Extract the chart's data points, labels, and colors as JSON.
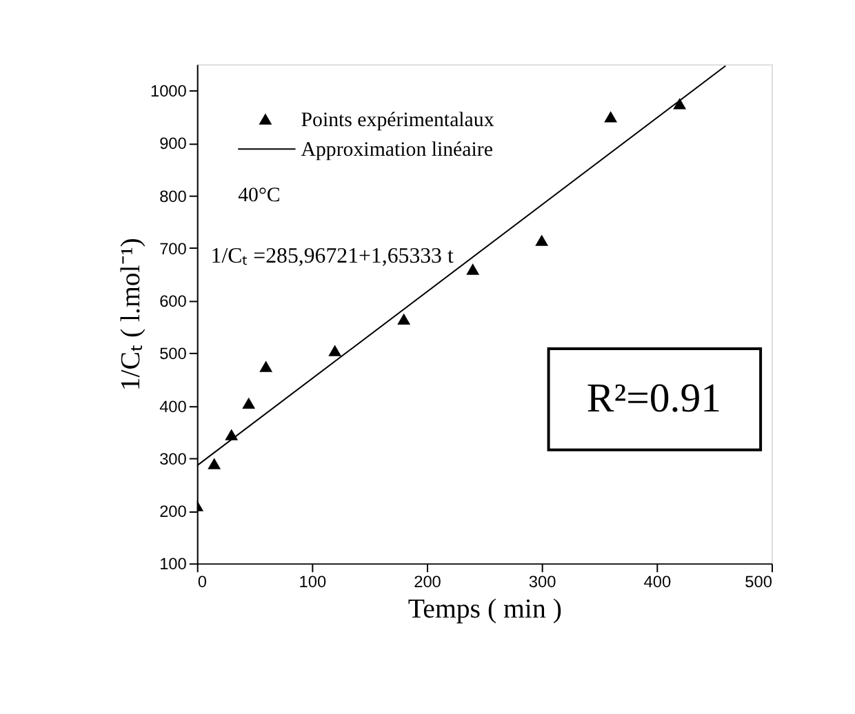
{
  "chart_data": {
    "type": "scatter",
    "xlabel": "Temps ( min )",
    "ylabel": "1/Cₜ ( l.mol⁻¹)",
    "x": [
      0,
      15,
      30,
      45,
      60,
      120,
      180,
      240,
      300,
      360,
      420
    ],
    "series": [
      {
        "name": "Points expérimentalaux",
        "color": "#000000",
        "marker": "triangle",
        "values": [
          210,
          290,
          345,
          405,
          475,
          505,
          565,
          660,
          715,
          950,
          975
        ]
      },
      {
        "name": "Approximation linéaire",
        "type": "line",
        "color": "#000000",
        "line_style": "solid",
        "x": [
          0,
          460
        ],
        "values": [
          286,
          1047
        ]
      }
    ],
    "annotations": [
      "40°C",
      "1/Cₜ =285,96721+1,65333 t",
      "R²=0.91"
    ],
    "xlim": [
      0,
      500
    ],
    "ylim": [
      100,
      1050
    ],
    "xticks": [
      0,
      100,
      200,
      300,
      400,
      500
    ],
    "yticks": [
      100,
      200,
      300,
      400,
      500,
      600,
      700,
      800,
      900,
      1000
    ],
    "grid": false,
    "legend": "top left"
  }
}
